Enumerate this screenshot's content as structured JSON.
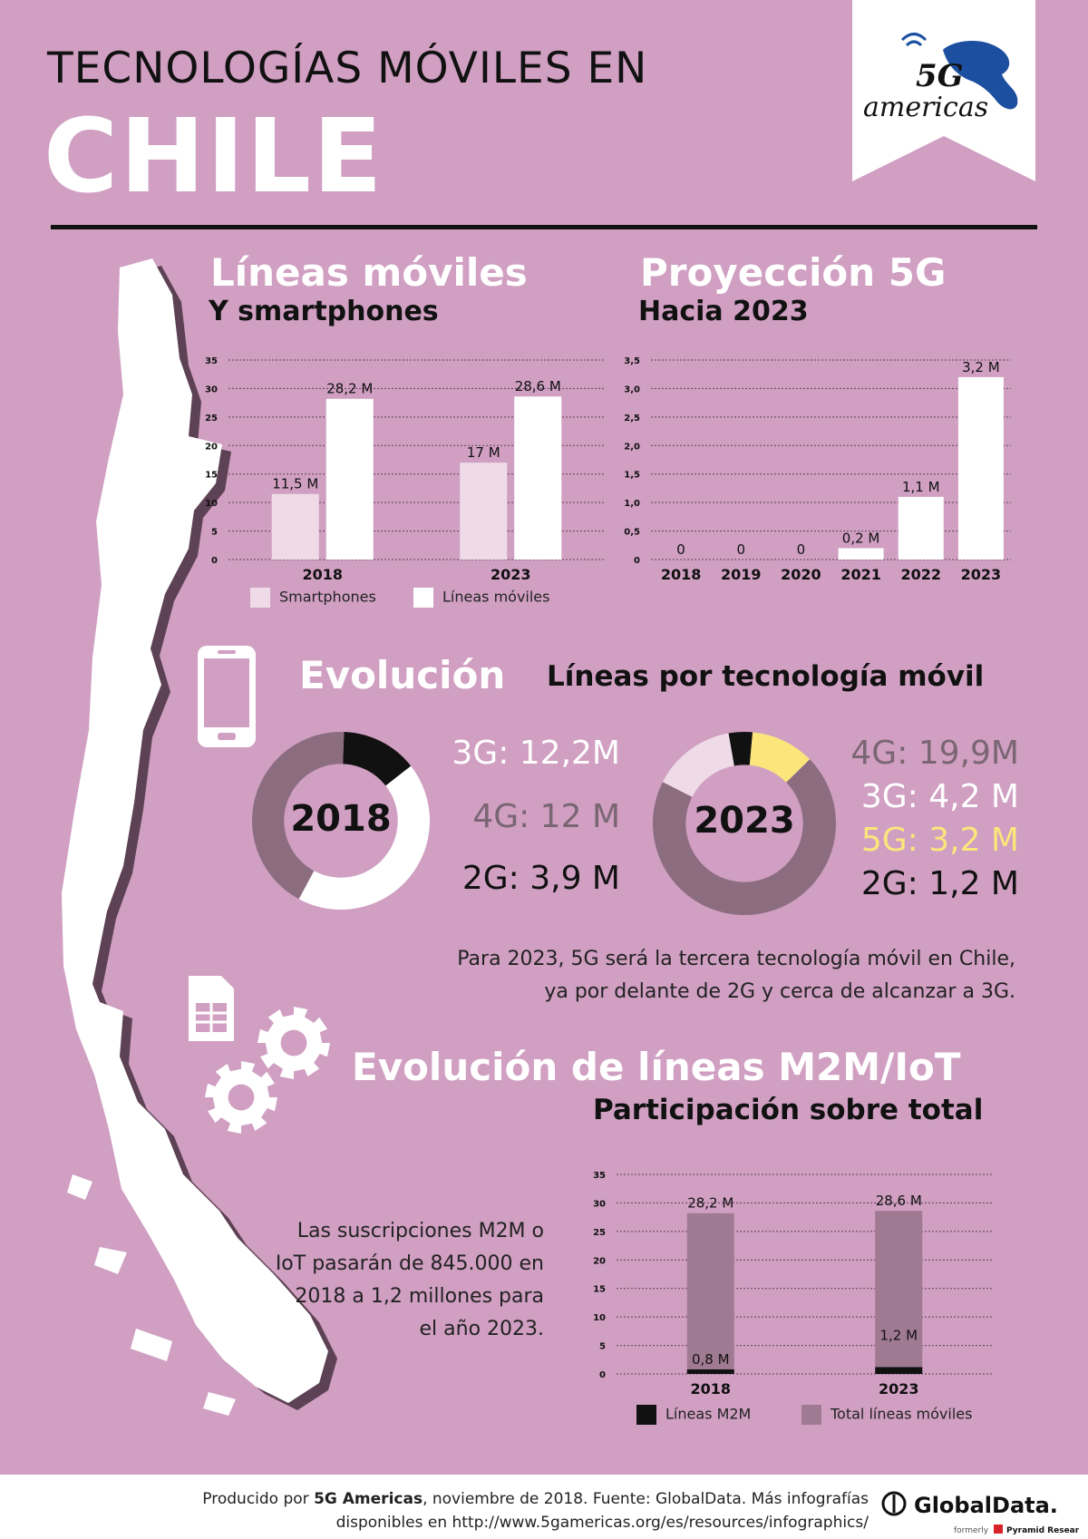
{
  "header": {
    "title_line1": "TECNOLOGÍAS MÓVILES EN",
    "title_line2": "CHILE",
    "logo_text_top": "5G",
    "logo_text_bottom": "americas"
  },
  "section_lines": {
    "title": "Líneas móviles",
    "subtitle": "Y smartphones"
  },
  "section_5g": {
    "title": "Proyección 5G",
    "subtitle": "Hacia 2023"
  },
  "section_evolution": {
    "title": "Evolución",
    "subtitle": "Líneas por tecnología móvil"
  },
  "donut_2018": {
    "center_label": "2018",
    "labels": {
      "g3": "3G: 12,2M",
      "g4": "4G: 12 M",
      "g2": "2G: 3,9 M"
    }
  },
  "donut_2023": {
    "center_label": "2023",
    "labels": {
      "g4": "4G: 19,9M",
      "g3": "3G: 4,2 M",
      "g5": "5G: 3,2 M",
      "g2": "2G: 1,2 M"
    }
  },
  "evolution_note": "Para 2023, 5G será la tercera tecnología móvil en Chile, ya por delante de 2G y cerca de alcanzar a 3G.",
  "section_m2m": {
    "title": "Evolución de líneas M2M/IoT",
    "subtitle": "Participación sobre total"
  },
  "m2m_note": "Las suscripciones M2M o IoT pasarán de 845.000 en 2018 a 1,2 millones para el año 2023.",
  "footer": {
    "line1_prefix": "Producido por ",
    "line1_brand": "5G Americas",
    "line1_rest": ", noviembre de 2018. Fuente: GlobalData. Más infografías",
    "line2": "disponibles en http://www.5gamericas.org/es/resources/infographics/",
    "gd_name": "GlobalData.",
    "gd_formerly": "formerly",
    "gd_pyramid": "Pyramid Research"
  },
  "colors": {
    "background": "#d09fc2",
    "white": "#ffffff",
    "light_pink": "#efdbe8",
    "mauve": "#8c6d80",
    "dark_mauve": "#6f5565",
    "yellow": "#fbe67c",
    "black": "#111111",
    "grey_text": "#7a6673"
  },
  "icons": [
    "chile-map-icon",
    "smartphone-icon",
    "sim-card-icon",
    "gears-icon",
    "5g-americas-logo",
    "globaldata-logo"
  ],
  "chart_data": [
    {
      "type": "bar",
      "categories": [
        "2018",
        "2023"
      ],
      "series": [
        {
          "name": "Smartphones",
          "values": [
            11.5,
            17
          ],
          "labels": [
            "11,5 M",
            "17 M"
          ],
          "color": "#efdbe8"
        },
        {
          "name": "Líneas móviles",
          "values": [
            28.2,
            28.6
          ],
          "labels": [
            "28,2 M",
            "28,6 M"
          ],
          "color": "#ffffff"
        }
      ],
      "ylim": [
        0,
        35
      ],
      "yticks": [
        "0",
        "5",
        "10",
        "15",
        "20",
        "25",
        "30",
        "35"
      ],
      "grid": true,
      "legend": "bottom"
    },
    {
      "type": "bar",
      "categories": [
        "2018",
        "2019",
        "2020",
        "2021",
        "2022",
        "2023"
      ],
      "values": [
        0,
        0,
        0,
        0.2,
        1.1,
        3.2
      ],
      "labels": [
        "0",
        "0",
        "0",
        "0,2 M",
        "1,1 M",
        "3,2 M"
      ],
      "ylim": [
        0,
        3.5
      ],
      "yticks": [
        "0",
        "0,5",
        "1,0",
        "1,5",
        "2,0",
        "2,5",
        "3,0",
        "3,5"
      ],
      "grid": true
    },
    {
      "type": "pie",
      "year": "2018",
      "slices": [
        {
          "name": "2G",
          "value": 3.9,
          "color": "#111111"
        },
        {
          "name": "3G",
          "value": 12.2,
          "color": "#ffffff"
        },
        {
          "name": "4G",
          "value": 12,
          "color": "#8c6d80"
        }
      ]
    },
    {
      "type": "pie",
      "year": "2023",
      "slices": [
        {
          "name": "2G",
          "value": 1.2,
          "color": "#111111"
        },
        {
          "name": "5G",
          "value": 3.2,
          "color": "#fbe67c"
        },
        {
          "name": "4G",
          "value": 19.9,
          "color": "#8c6d80"
        },
        {
          "name": "3G",
          "value": 4.2,
          "color": "#efdbe8"
        }
      ]
    },
    {
      "type": "bar",
      "categories": [
        "2018",
        "2023"
      ],
      "series": [
        {
          "name": "Líneas M2M",
          "values": [
            0.8,
            1.2
          ],
          "labels": [
            "0,8 M",
            "1,2 M"
          ],
          "color": "#111111"
        },
        {
          "name": "Total líneas móviles",
          "values": [
            28.2,
            28.6
          ],
          "labels": [
            "28,2 M",
            "28,6 M"
          ],
          "color": "#a07a92"
        }
      ],
      "ylim": [
        0,
        35
      ],
      "yticks": [
        "0",
        "5",
        "10",
        "15",
        "20",
        "25",
        "30",
        "35"
      ],
      "grid": true,
      "legend": "bottom",
      "stacked": "overlay"
    }
  ]
}
